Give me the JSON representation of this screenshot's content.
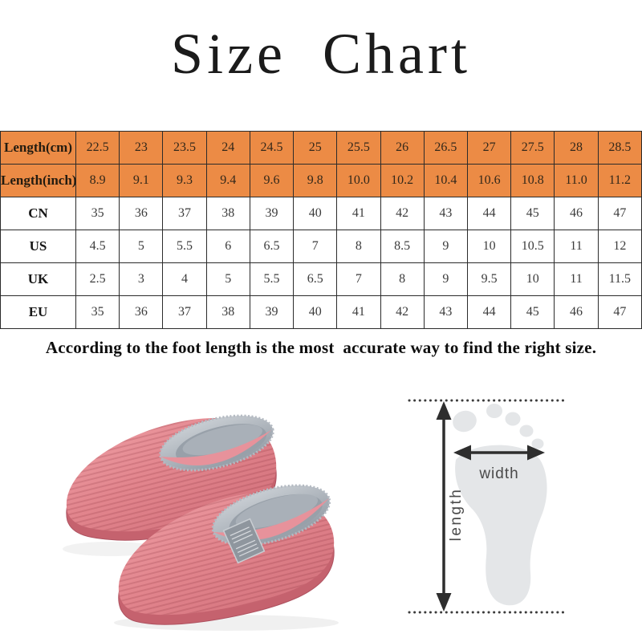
{
  "title": "Size Chart",
  "size_table": {
    "rows": [
      {
        "label": "Length(cm)",
        "highlight": true,
        "values": [
          "22.5",
          "23",
          "23.5",
          "24",
          "24.5",
          "25",
          "25.5",
          "26",
          "26.5",
          "27",
          "27.5",
          "28",
          "28.5"
        ]
      },
      {
        "label": "Length(inch)",
        "highlight": true,
        "values": [
          "8.9",
          "9.1",
          "9.3",
          "9.4",
          "9.6",
          "9.8",
          "10.0",
          "10.2",
          "10.4",
          "10.6",
          "10.8",
          "11.0",
          "11.2"
        ]
      },
      {
        "label": "CN",
        "highlight": false,
        "values": [
          "35",
          "36",
          "37",
          "38",
          "39",
          "40",
          "41",
          "42",
          "43",
          "44",
          "45",
          "46",
          "47"
        ]
      },
      {
        "label": "US",
        "highlight": false,
        "values": [
          "4.5",
          "5",
          "5.5",
          "6",
          "6.5",
          "7",
          "8",
          "8.5",
          "9",
          "10",
          "10.5",
          "11",
          "12"
        ]
      },
      {
        "label": "UK",
        "highlight": false,
        "values": [
          "2.5",
          "3",
          "4",
          "5",
          "5.5",
          "6.5",
          "7",
          "8",
          "9",
          "9.5",
          "10",
          "11",
          "11.5"
        ]
      },
      {
        "label": "EU",
        "highlight": false,
        "values": [
          "35",
          "36",
          "37",
          "38",
          "39",
          "40",
          "41",
          "42",
          "43",
          "44",
          "45",
          "46",
          "47"
        ]
      }
    ]
  },
  "note": "According to the foot length is the most  accurate way to find the right size.",
  "measure_diagram": {
    "width_label": "width",
    "length_label": "length"
  },
  "colors": {
    "header_bg": "#EC8B45",
    "table_border": "#2b2b2b",
    "note_text": "#0e0e0e",
    "slipper_pink": "#E2858D",
    "slipper_sole": "#C5626E",
    "fur_gray": "#9AA2AB",
    "foot_gray": "#E4E6E8",
    "arrow_dark": "#2E2E2E"
  }
}
